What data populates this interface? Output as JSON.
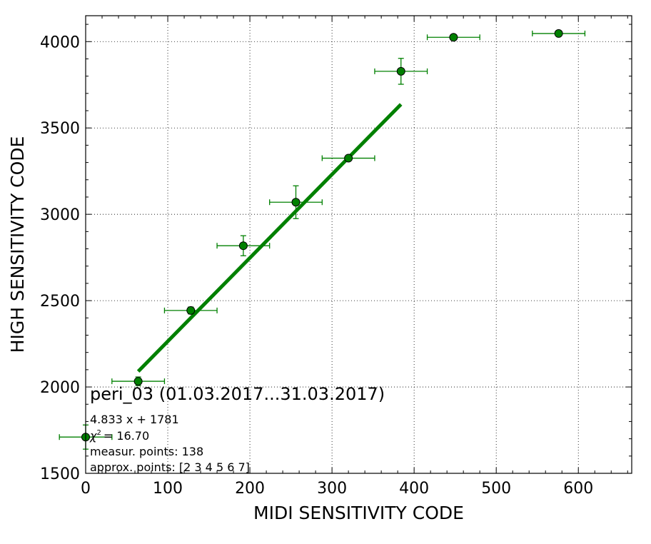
{
  "chart_data": {
    "type": "scatter",
    "xlabel": "MIDI SENSITIVITY CODE",
    "ylabel": "HIGH SENSITIVITY CODE",
    "xlim": [
      0,
      665
    ],
    "ylim": [
      1500,
      4150
    ],
    "xticks": [
      0,
      100,
      200,
      300,
      400,
      500,
      600
    ],
    "yticks": [
      1500,
      2000,
      2500,
      3000,
      3500,
      4000
    ],
    "grid": true,
    "colors": {
      "series": "#008000",
      "marker": "#008000",
      "marker_edge": "#000000"
    },
    "series": [
      {
        "points": [
          {
            "x": 0,
            "y": 1710,
            "xerr": 32,
            "yerr": 70
          },
          {
            "x": 64,
            "y": 2033,
            "xerr": 32,
            "yerr": 25
          },
          {
            "x": 128,
            "y": 2443,
            "xerr": 32,
            "yerr": 20
          },
          {
            "x": 192,
            "y": 2818,
            "xerr": 32,
            "yerr": 58
          },
          {
            "x": 256,
            "y": 3070,
            "xerr": 32,
            "yerr": 95
          },
          {
            "x": 320,
            "y": 3325,
            "xerr": 32,
            "yerr": 12
          },
          {
            "x": 384,
            "y": 3828,
            "xerr": 32,
            "yerr": 75
          },
          {
            "x": 448,
            "y": 4025,
            "xerr": 32,
            "yerr": 8
          },
          {
            "x": 576,
            "y": 4047,
            "xerr": 32,
            "yerr": 6
          }
        ]
      }
    ],
    "fit": {
      "slope": 4.833,
      "intercept": 1781,
      "x_range": [
        64,
        384
      ]
    },
    "annotations": {
      "title": "peri_03 (01.03.2017...31.03.2017)",
      "equation": "4.833 x + 1781",
      "chi_symbol": "χ",
      "chi_exp": "2",
      "chi_value": "= 16.70",
      "measur_points": "measur. points: 138",
      "approx_points": "approx. points: [2 3 4 5 6 7]"
    }
  }
}
